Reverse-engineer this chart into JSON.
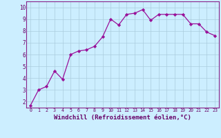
{
  "x": [
    0,
    1,
    2,
    3,
    4,
    5,
    6,
    7,
    8,
    9,
    10,
    11,
    12,
    13,
    14,
    15,
    16,
    17,
    18,
    19,
    20,
    21,
    22,
    23
  ],
  "y": [
    1.7,
    3.0,
    3.3,
    4.6,
    3.9,
    6.0,
    6.3,
    6.4,
    6.7,
    7.5,
    9.0,
    8.5,
    9.4,
    9.5,
    9.8,
    8.9,
    9.4,
    9.4,
    9.4,
    9.4,
    8.6,
    8.6,
    7.9,
    7.6
  ],
  "line_color": "#991199",
  "marker": "D",
  "marker_size": 2.2,
  "bg_color": "#cceeff",
  "grid_color": "#aaccdd",
  "xlabel": "Windchill (Refroidissement éolien,°C)",
  "xlabel_fontsize": 6.5,
  "ylabel_ticks": [
    2,
    3,
    4,
    5,
    6,
    7,
    8,
    9,
    10
  ],
  "xlim": [
    -0.5,
    23.5
  ],
  "ylim": [
    1.5,
    10.5
  ],
  "axis_label_color": "#660066",
  "tick_color": "#660066",
  "spine_color": "#882288"
}
